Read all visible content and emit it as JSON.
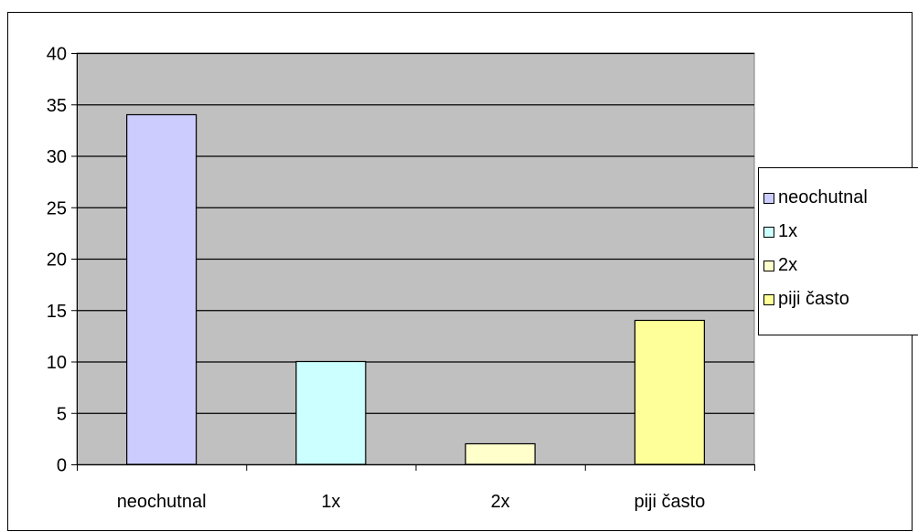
{
  "chart_data": {
    "type": "bar",
    "title": "",
    "xlabel": "",
    "ylabel": "",
    "categories": [
      "neochutnal",
      "1x",
      "2x",
      "piji často"
    ],
    "values": [
      34,
      10,
      2,
      14
    ],
    "ylim": [
      0,
      40
    ],
    "yticks": [
      0,
      5,
      10,
      15,
      20,
      25,
      30,
      35,
      40
    ],
    "grid": true,
    "legend_position": "right",
    "plot_background": "#c0c0c0",
    "bar_colors": [
      "#ccccff",
      "#ccffff",
      "#ffffcc",
      "#ffff99"
    ],
    "legend": [
      {
        "label": "neochutnal",
        "color": "#ccccff"
      },
      {
        "label": "1x",
        "color": "#ccffff"
      },
      {
        "label": "2x",
        "color": "#ffffcc"
      },
      {
        "label": "piji často",
        "color": "#ffff99"
      }
    ]
  }
}
